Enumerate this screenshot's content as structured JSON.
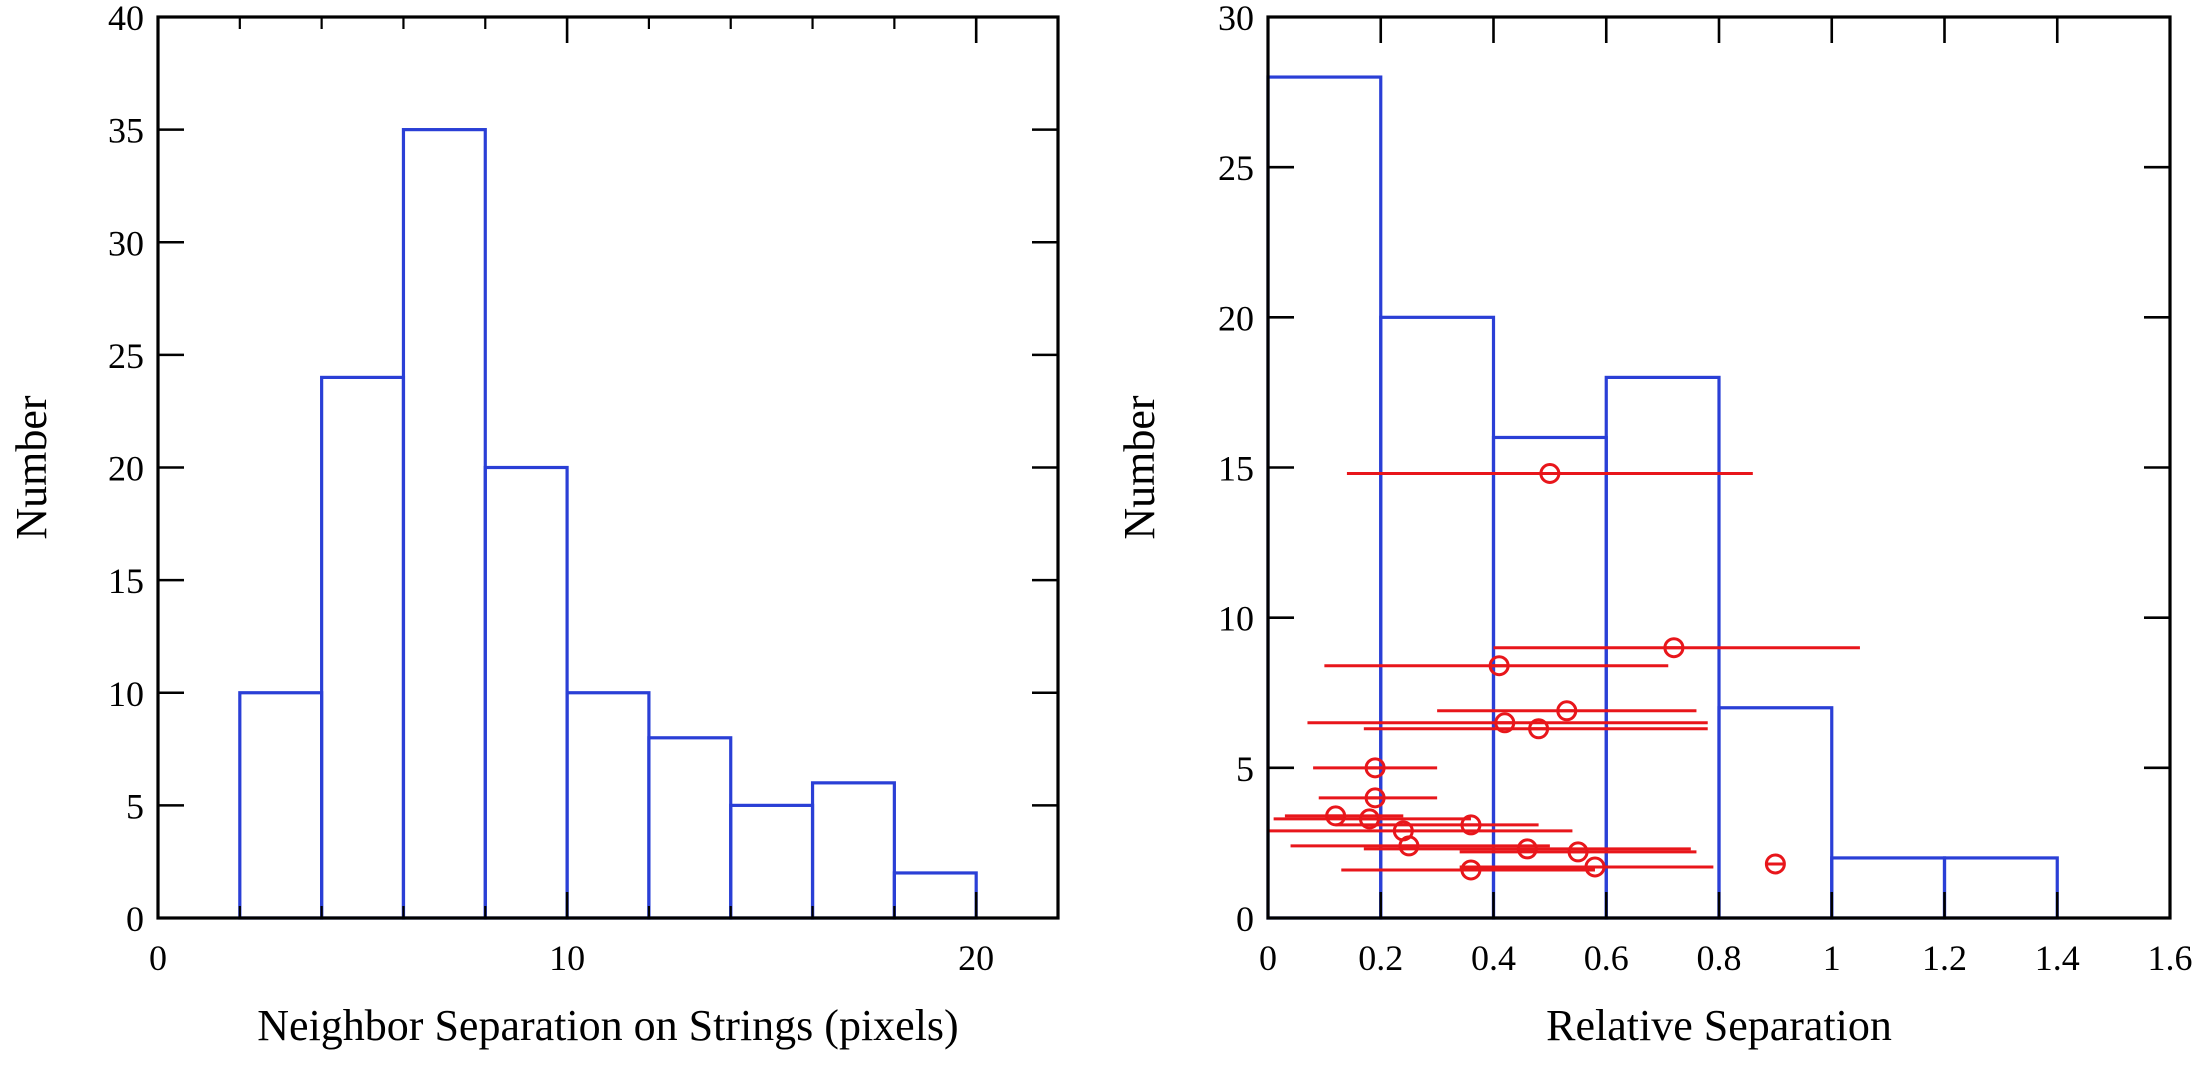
{
  "chart_data": [
    {
      "type": "histogram",
      "title": "",
      "xlabel": "Neighbor Separation on Strings (pixels)",
      "ylabel": "Number",
      "xlim": [
        0,
        22
      ],
      "ylim": [
        0,
        40
      ],
      "x_ticks": [
        0,
        10,
        20
      ],
      "x_tick_labels": [
        "0",
        "10",
        "20"
      ],
      "x_minor_ticks": [
        2,
        4,
        6,
        8,
        12,
        14,
        16,
        18
      ],
      "y_ticks": [
        0,
        5,
        10,
        15,
        20,
        25,
        30,
        35,
        40
      ],
      "y_tick_labels": [
        "0",
        "5",
        "10",
        "15",
        "20",
        "25",
        "30",
        "35",
        "40"
      ],
      "bar_color": "#2a3fd6",
      "bins": [
        {
          "x0": 2,
          "x1": 4,
          "value": 10
        },
        {
          "x0": 4,
          "x1": 6,
          "value": 24
        },
        {
          "x0": 6,
          "x1": 8,
          "value": 35
        },
        {
          "x0": 8,
          "x1": 10,
          "value": 20
        },
        {
          "x0": 10,
          "x1": 12,
          "value": 10
        },
        {
          "x0": 12,
          "x1": 14,
          "value": 8
        },
        {
          "x0": 14,
          "x1": 16,
          "value": 5
        },
        {
          "x0": 16,
          "x1": 18,
          "value": 6
        },
        {
          "x0": 18,
          "x1": 20,
          "value": 2
        }
      ]
    },
    {
      "type": "histogram",
      "title": "",
      "xlabel": "Relative Separation",
      "ylabel": "Number",
      "xlim": [
        0,
        1.6
      ],
      "ylim": [
        0,
        30
      ],
      "x_ticks": [
        0,
        0.2,
        0.4,
        0.6,
        0.8,
        1,
        1.2,
        1.4,
        1.6
      ],
      "x_tick_labels": [
        "0",
        "0.2",
        "0.4",
        "0.6",
        "0.8",
        "1",
        "1.2",
        "1.4",
        "1.6"
      ],
      "y_ticks": [
        0,
        5,
        10,
        15,
        20,
        25,
        30
      ],
      "y_tick_labels": [
        "0",
        "5",
        "10",
        "15",
        "20",
        "25",
        "30"
      ],
      "bar_color": "#2a3fd6",
      "bins": [
        {
          "x0": 0,
          "x1": 0.2,
          "value": 28
        },
        {
          "x0": 0.2,
          "x1": 0.4,
          "value": 20
        },
        {
          "x0": 0.4,
          "x1": 0.6,
          "value": 16
        },
        {
          "x0": 0.6,
          "x1": 0.8,
          "value": 18
        },
        {
          "x0": 0.8,
          "x1": 1.0,
          "value": 7
        },
        {
          "x0": 1.0,
          "x1": 1.2,
          "value": 2
        },
        {
          "x0": 1.2,
          "x1": 1.4,
          "value": 2
        }
      ],
      "points_color": "#e8161b",
      "points": [
        {
          "x": 0.5,
          "y": 14.8,
          "xlo": 0.14,
          "xhi": 0.86
        },
        {
          "x": 0.72,
          "y": 9.0,
          "xlo": 0.4,
          "xhi": 1.05
        },
        {
          "x": 0.41,
          "y": 8.4,
          "xlo": 0.1,
          "xhi": 0.71
        },
        {
          "x": 0.53,
          "y": 6.9,
          "xlo": 0.3,
          "xhi": 0.76
        },
        {
          "x": 0.42,
          "y": 6.5,
          "xlo": 0.07,
          "xhi": 0.78
        },
        {
          "x": 0.48,
          "y": 6.3,
          "xlo": 0.17,
          "xhi": 0.78
        },
        {
          "x": 0.19,
          "y": 5.0,
          "xlo": 0.08,
          "xhi": 0.3
        },
        {
          "x": 0.19,
          "y": 4.0,
          "xlo": 0.09,
          "xhi": 0.3
        },
        {
          "x": 0.12,
          "y": 3.4,
          "xlo": 0.03,
          "xhi": 0.24
        },
        {
          "x": 0.18,
          "y": 3.3,
          "xlo": 0.01,
          "xhi": 0.36
        },
        {
          "x": 0.36,
          "y": 3.1,
          "xlo": 0.12,
          "xhi": 0.48
        },
        {
          "x": 0.24,
          "y": 2.9,
          "xlo": 0.0,
          "xhi": 0.54
        },
        {
          "x": 0.25,
          "y": 2.4,
          "xlo": 0.04,
          "xhi": 0.5
        },
        {
          "x": 0.46,
          "y": 2.3,
          "xlo": 0.17,
          "xhi": 0.75
        },
        {
          "x": 0.55,
          "y": 2.2,
          "xlo": 0.34,
          "xhi": 0.76
        },
        {
          "x": 0.9,
          "y": 1.8,
          "xlo": 0.9,
          "xhi": 0.9
        },
        {
          "x": 0.36,
          "y": 1.6,
          "xlo": 0.13,
          "xhi": 0.58
        },
        {
          "x": 0.58,
          "y": 1.7,
          "xlo": 0.34,
          "xhi": 0.79
        }
      ]
    }
  ]
}
